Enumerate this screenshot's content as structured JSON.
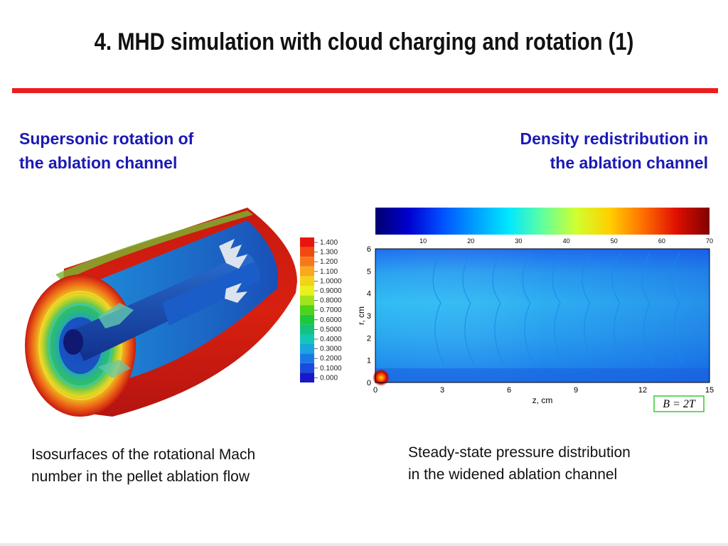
{
  "slide": {
    "title": "4. MHD simulation with cloud charging and rotation (1)",
    "accent_color": "#ee1c1c",
    "heading_color": "#1a1ab4"
  },
  "left_panel": {
    "heading_lines": [
      "Supersonic rotation of",
      "the ablation channel"
    ],
    "caption_lines": [
      "Isosurfaces of the rotational Mach",
      "number in the pellet ablation flow"
    ],
    "figure": {
      "description_icon": "cylinder-isosurface-render",
      "colorbar": {
        "labels": [
          "1.400",
          "1.300",
          "1.200",
          "1.100",
          "1.0000",
          "0.9000",
          "0.8000",
          "0.7000",
          "0.6000",
          "0.5000",
          "0.4000",
          "0.3000",
          "0.2000",
          "0.1000",
          "0.000"
        ],
        "colors": [
          "#e8150f",
          "#f04a10",
          "#f7781a",
          "#fba81c",
          "#f4d21b",
          "#e8f21d",
          "#a2e41b",
          "#4cd418",
          "#1ec83a",
          "#14c27c",
          "#14c6b4",
          "#1aa4e0",
          "#1a78e6",
          "#1a4ade",
          "#1818c8"
        ]
      }
    }
  },
  "right_panel": {
    "heading_lines": [
      "Density redistribution in",
      "the ablation channel"
    ],
    "caption_lines": [
      "Steady-state pressure distribution",
      "in the widened ablation channel"
    ],
    "figure": {
      "colorbar_ticks": [
        "10",
        "20",
        "30",
        "40",
        "50",
        "60",
        "70"
      ],
      "colorbar_stops": [
        "#000070",
        "#0000d0",
        "#0050ff",
        "#00a0ff",
        "#00e8ff",
        "#60ffa0",
        "#d0ff30",
        "#ffd000",
        "#ff7000",
        "#e01000",
        "#800000"
      ],
      "x_label": "z, cm",
      "y_label": "r, cm",
      "x_ticks": [
        "0",
        "3",
        "6",
        "9",
        "12",
        "15"
      ],
      "y_ticks": [
        "0",
        "1",
        "2",
        "3",
        "4",
        "5",
        "6"
      ],
      "field_label": "B = 2T",
      "field_box_color": "#33cc33"
    }
  }
}
